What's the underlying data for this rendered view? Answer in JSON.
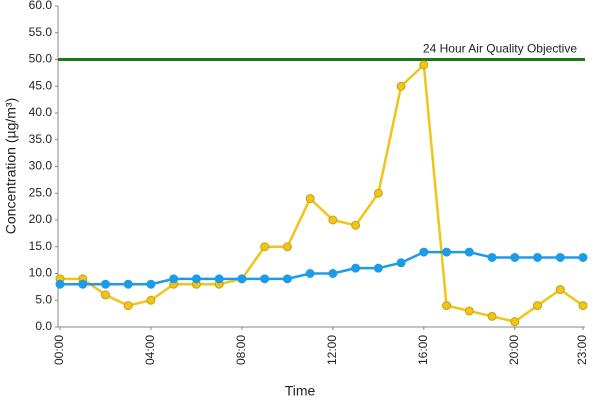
{
  "chart_data": {
    "type": "line",
    "xlabel": "Time",
    "ylabel": "Concentration (µg/m³)",
    "categories": [
      "00:00",
      null,
      null,
      null,
      "04:00",
      null,
      null,
      null,
      "08:00",
      null,
      null,
      null,
      "12:00",
      null,
      null,
      null,
      "16:00",
      null,
      null,
      null,
      "20:00",
      null,
      null,
      "23:00"
    ],
    "series": [
      {
        "color": "#f0c419",
        "values": [
          9,
          9,
          6,
          4,
          5,
          8,
          8,
          8,
          9,
          15,
          15,
          24,
          20,
          19,
          25,
          45,
          49,
          4,
          3,
          2,
          1,
          4,
          7,
          4
        ]
      },
      {
        "color": "#1e9be8",
        "values": [
          8,
          8,
          8,
          8,
          8,
          9,
          9,
          9,
          9,
          9,
          9,
          10,
          10,
          11,
          11,
          12,
          14,
          14,
          14,
          13,
          13,
          13,
          13,
          13
        ]
      }
    ],
    "annotations": [
      {
        "text": "24 Hour Air Quality Objective",
        "value": 50,
        "color": "#1a7a1a"
      }
    ],
    "ylim": [
      0,
      60
    ],
    "yticks": [
      {
        "value": 0,
        "label": "0.0"
      },
      {
        "value": 5,
        "label": "5.0"
      },
      {
        "value": 10,
        "label": "10.0"
      },
      {
        "value": 15,
        "label": "15.0"
      },
      {
        "value": 20,
        "label": "20.0"
      },
      {
        "value": 25,
        "label": "25.0"
      },
      {
        "value": 30,
        "label": "30.0"
      },
      {
        "value": 35,
        "label": "35.0"
      },
      {
        "value": 40,
        "label": "40.0"
      },
      {
        "value": 45,
        "label": "45.0"
      },
      {
        "value": 50,
        "label": "50.0"
      },
      {
        "value": 55,
        "label": "55.0"
      },
      {
        "value": 60,
        "label": "60.0"
      }
    ],
    "grid": false
  }
}
